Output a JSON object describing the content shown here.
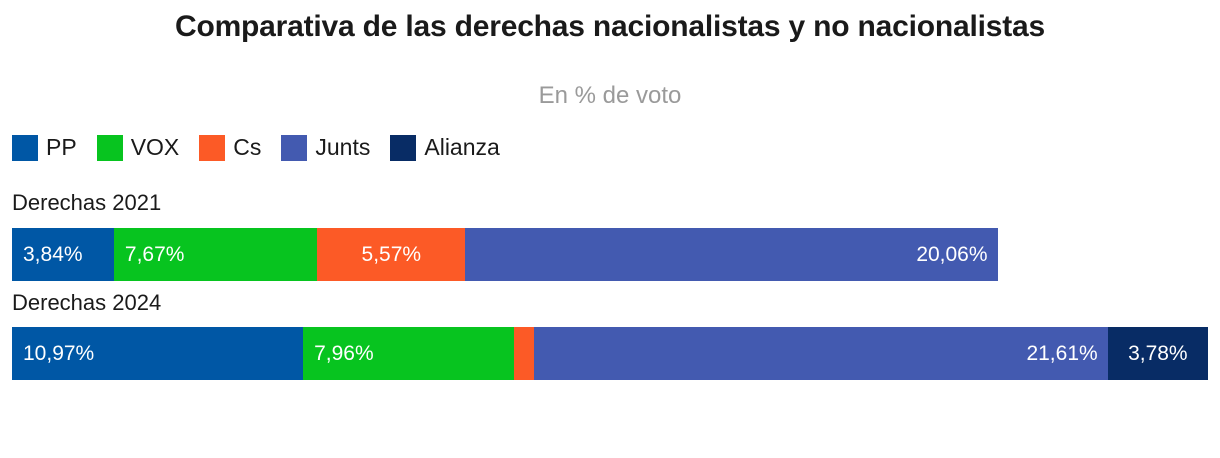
{
  "chart_data": {
    "type": "bar",
    "orientation": "horizontal",
    "stacked": true,
    "title": "Comparativa de las derechas nacionalistas y no nacionalistas",
    "subtitle": "En % de voto",
    "legend_position": "top-left",
    "categories": [
      "Derechas 2021",
      "Derechas 2024"
    ],
    "series": [
      {
        "name": "PP",
        "color": "#0057a5",
        "values": [
          3.84,
          10.97
        ],
        "labels": [
          "3,84%",
          "10,97%"
        ],
        "label_align": [
          "left",
          "left"
        ]
      },
      {
        "name": "VOX",
        "color": "#07c41f",
        "values": [
          7.67,
          7.96
        ],
        "labels": [
          "7,67%",
          "7,96%"
        ],
        "label_align": [
          "left",
          "left"
        ]
      },
      {
        "name": "Cs",
        "color": "#fc5a26",
        "values": [
          5.57,
          0.75
        ],
        "labels": [
          "5,57%",
          ""
        ],
        "label_align": [
          "center",
          "center"
        ]
      },
      {
        "name": "Junts",
        "color": "#435ab0",
        "values": [
          20.06,
          21.61
        ],
        "labels": [
          "20,06%",
          "21,61%"
        ],
        "label_align": [
          "right",
          "right"
        ]
      },
      {
        "name": "Alianza",
        "color": "#082c65",
        "values": [
          0,
          3.78
        ],
        "labels": [
          "",
          "3,78%"
        ],
        "label_align": [
          "center",
          "center"
        ]
      }
    ],
    "xlim": [
      0,
      45.07
    ]
  }
}
